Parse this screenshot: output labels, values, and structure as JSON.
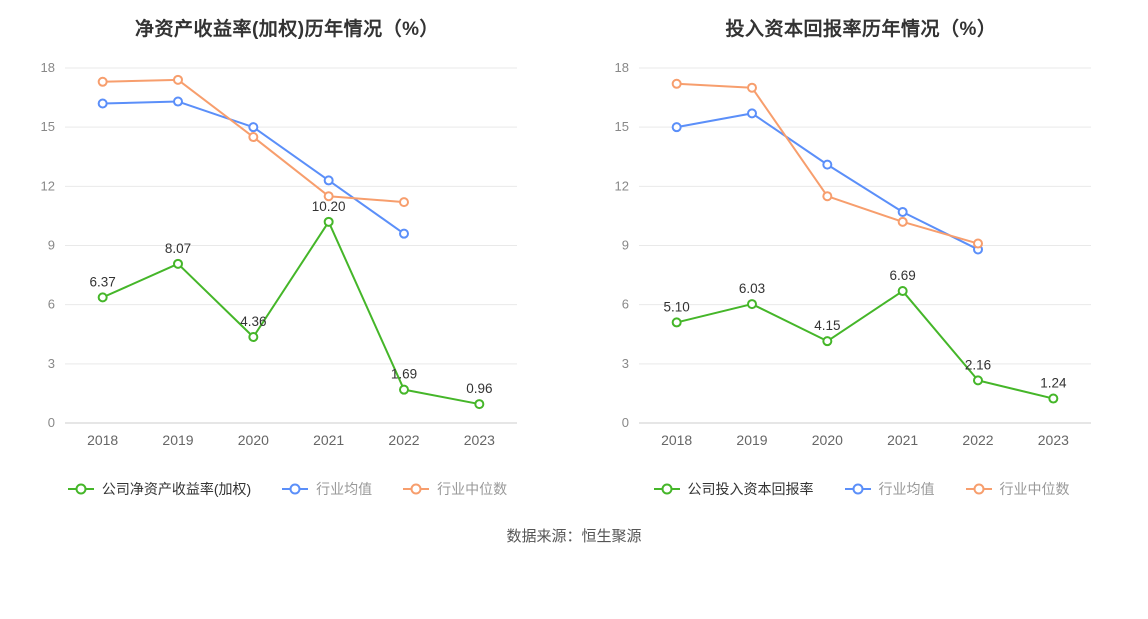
{
  "colors": {
    "company": "#45b629",
    "industry_avg": "#5b8ff9",
    "industry_median": "#f79e6d",
    "grid": "#e9e9e9",
    "axis_line": "#cccccc",
    "y_tick_text": "#888888",
    "x_tick_text": "#666666",
    "data_label": "#333333"
  },
  "chart_data": [
    {
      "type": "line",
      "title": "净资产收益率(加权)历年情况（%）",
      "categories": [
        "2018",
        "2019",
        "2020",
        "2021",
        "2022",
        "2023"
      ],
      "ylim": [
        0,
        18
      ],
      "yticks": [
        0,
        3,
        6,
        9,
        12,
        15,
        18
      ],
      "grid": true,
      "legend_position": "bottom",
      "series": [
        {
          "name": "公司净资产收益率(加权)",
          "color_key": "company",
          "values": [
            6.37,
            8.07,
            4.36,
            10.2,
            1.69,
            0.96
          ],
          "labels": [
            "6.37",
            "8.07",
            "4.36",
            "10.20",
            "1.69",
            "0.96"
          ]
        },
        {
          "name": "行业均值",
          "color_key": "industry_avg",
          "values": [
            16.2,
            16.3,
            15.0,
            12.3,
            9.6,
            null
          ]
        },
        {
          "name": "行业中位数",
          "color_key": "industry_median",
          "values": [
            17.3,
            17.4,
            14.5,
            11.5,
            11.2,
            null
          ]
        }
      ]
    },
    {
      "type": "line",
      "title": "投入资本回报率历年情况（%）",
      "categories": [
        "2018",
        "2019",
        "2020",
        "2021",
        "2022",
        "2023"
      ],
      "ylim": [
        0,
        18
      ],
      "yticks": [
        0,
        3,
        6,
        9,
        12,
        15,
        18
      ],
      "grid": true,
      "legend_position": "bottom",
      "series": [
        {
          "name": "公司投入资本回报率",
          "color_key": "company",
          "values": [
            5.1,
            6.03,
            4.15,
            6.69,
            2.16,
            1.24
          ],
          "labels": [
            "5.10",
            "6.03",
            "4.15",
            "6.69",
            "2.16",
            "1.24"
          ]
        },
        {
          "name": "行业均值",
          "color_key": "industry_avg",
          "values": [
            15.0,
            15.7,
            13.1,
            10.7,
            8.8,
            null
          ]
        },
        {
          "name": "行业中位数",
          "color_key": "industry_median",
          "values": [
            17.2,
            17.0,
            11.5,
            10.2,
            9.1,
            null
          ]
        }
      ]
    }
  ],
  "footer": {
    "source": "数据来源：恒生聚源"
  }
}
